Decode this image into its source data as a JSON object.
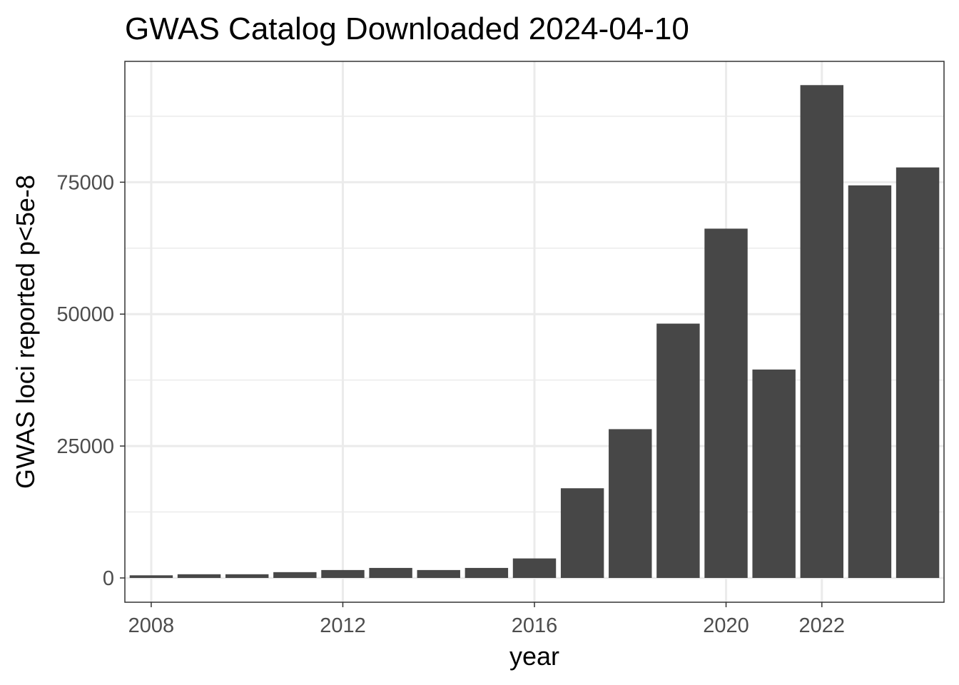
{
  "chart_data": {
    "type": "bar",
    "title": "GWAS Catalog Downloaded 2024-04-10",
    "xlabel": "year",
    "ylabel": "GWAS loci reported p<5e-8",
    "x": [
      2008,
      2009,
      2010,
      2011,
      2012,
      2013,
      2014,
      2015,
      2016,
      2017,
      2018,
      2019,
      2020,
      2021,
      2022,
      2023,
      2024
    ],
    "values": [
      500,
      700,
      700,
      1100,
      1500,
      1900,
      1500,
      1900,
      3700,
      17000,
      28200,
      48200,
      66200,
      39500,
      93400,
      74400,
      77800
    ],
    "xlim": [
      2007.45,
      2024.55
    ],
    "ylim": [
      -4600,
      97900
    ],
    "x_ticks": [
      2008,
      2012,
      2016,
      2020,
      2022
    ],
    "x_tick_labels": [
      "2008",
      "2012",
      "2016",
      "2020",
      "2022"
    ],
    "y_ticks": [
      0,
      25000,
      50000,
      75000
    ],
    "y_tick_labels": [
      "0",
      "25000",
      "50000",
      "75000"
    ],
    "y_minor_ticks": [
      12500,
      37500,
      62500,
      87500
    ],
    "grid": true,
    "colors": {
      "bar": "#474747",
      "grid": "#ebebeb",
      "panel_border": "#333333",
      "tick_text": "#4d4d4d"
    }
  }
}
